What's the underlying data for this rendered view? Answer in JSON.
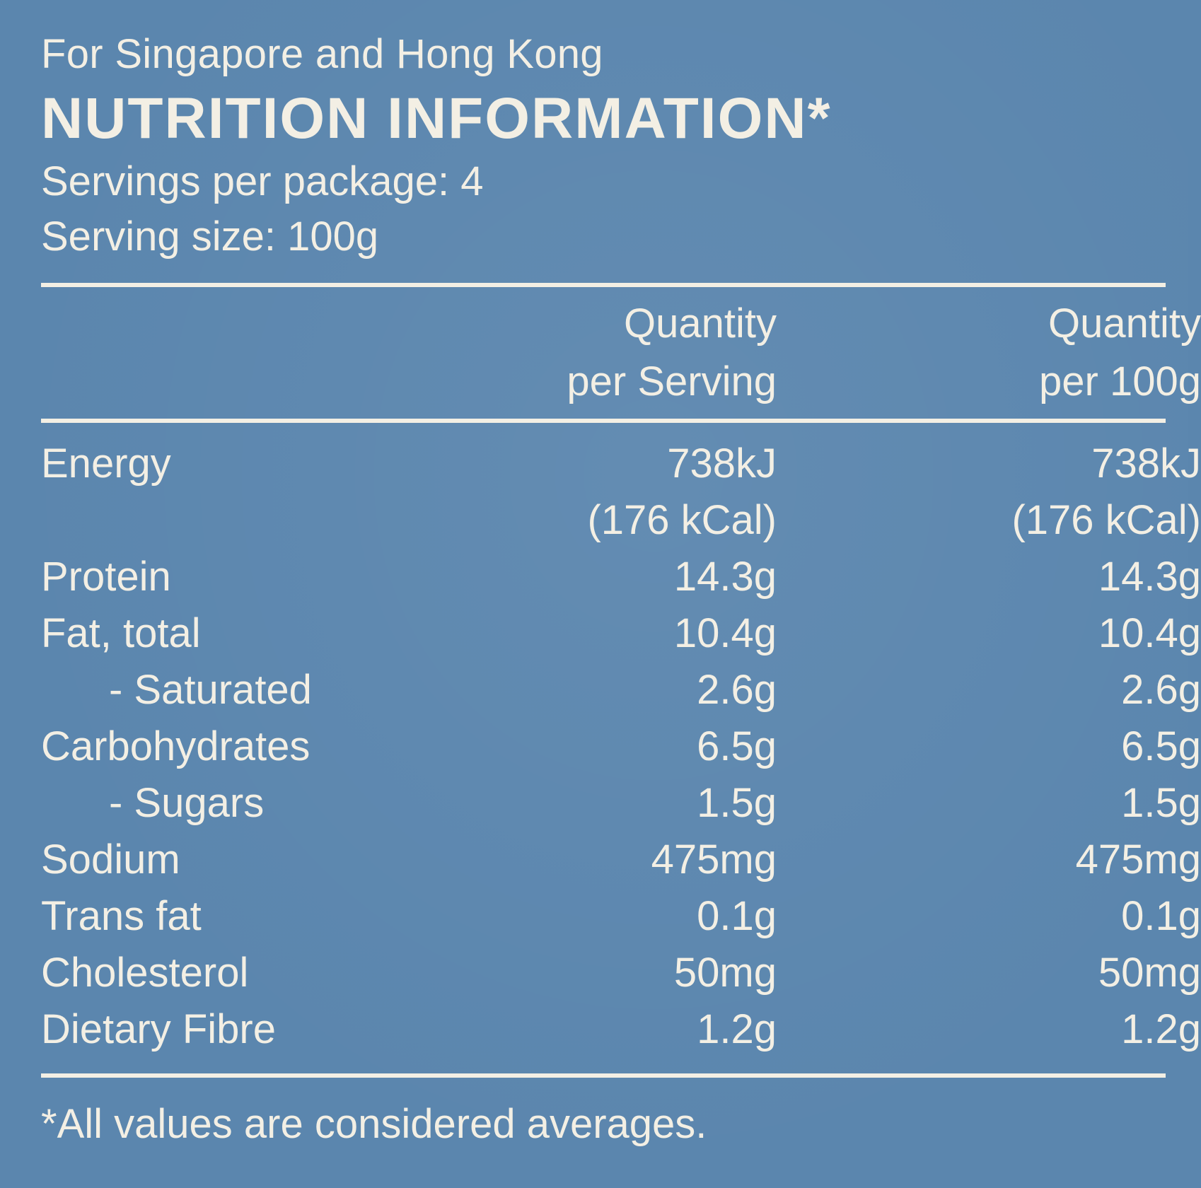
{
  "label": {
    "region": "For Singapore and Hong Kong",
    "title": "NUTRITION INFORMATION*",
    "servings_per_package": "Servings per package: 4",
    "serving_size": "Serving size: 100g",
    "background_color": "#5b86ae",
    "text_color": "#f3efe4"
  },
  "table": {
    "headers": {
      "per_serving": [
        "Quantity",
        "per Serving"
      ],
      "per_100g": [
        "Quantity",
        "per 100g"
      ]
    },
    "rows": [
      {
        "name": "Energy",
        "per_serving": [
          "738kJ",
          "(176 kCal)"
        ],
        "per_100g": [
          "738kJ",
          "(176 kCal)"
        ]
      },
      {
        "name": "Protein",
        "per_serving": [
          "14.3g"
        ],
        "per_100g": [
          "14.3g"
        ]
      },
      {
        "name": "Fat, total",
        "per_serving": [
          "10.4g"
        ],
        "per_100g": [
          "10.4g"
        ]
      },
      {
        "name": "- Saturated",
        "per_serving": [
          "2.6g"
        ],
        "per_100g": [
          "2.6g"
        ],
        "sub": true
      },
      {
        "name": "Carbohydrates",
        "per_serving": [
          "6.5g"
        ],
        "per_100g": [
          "6.5g"
        ]
      },
      {
        "name": "- Sugars",
        "per_serving": [
          "1.5g"
        ],
        "per_100g": [
          "1.5g"
        ],
        "sub": true
      },
      {
        "name": "Sodium",
        "per_serving": [
          "475mg"
        ],
        "per_100g": [
          "475mg"
        ]
      },
      {
        "name": "Trans fat",
        "per_serving": [
          "0.1g"
        ],
        "per_100g": [
          "0.1g"
        ]
      },
      {
        "name": "Cholesterol",
        "per_serving": [
          "50mg"
        ],
        "per_100g": [
          "50mg"
        ]
      },
      {
        "name": "Dietary Fibre",
        "per_serving": [
          "1.2g"
        ],
        "per_100g": [
          "1.2g"
        ]
      }
    ]
  },
  "footnote": "*All values are considered averages."
}
